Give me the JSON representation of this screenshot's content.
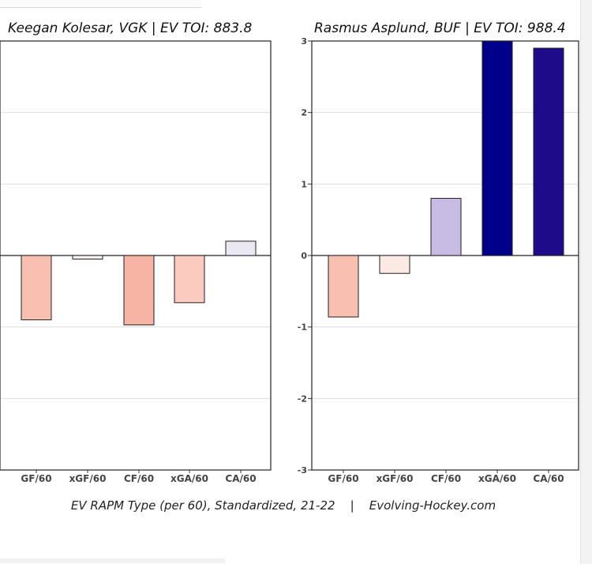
{
  "footer": "EV RAPM Type (per 60), Standardized, 21-22    |    Evolving-Hockey.com",
  "chart_data": [
    {
      "type": "bar",
      "title": "Keegan Kolesar, VGK  |  EV TOI: 883.8",
      "categories": [
        "GF/60",
        "xGF/60",
        "CF/60",
        "xGA/60",
        "CA/60"
      ],
      "values": [
        -0.9,
        -0.05,
        -0.97,
        -0.66,
        0.2
      ],
      "bar_colors": [
        "#f9c0b2",
        "#fdf1ef",
        "#f7b3a3",
        "#fbcbc0",
        "#ebe7f3"
      ],
      "ylim": [
        -3,
        3
      ],
      "yticks": [
        "-3",
        "-2",
        "-1",
        "0",
        "1",
        "2",
        "3"
      ],
      "grid": true,
      "xlabel": "",
      "ylabel": ""
    },
    {
      "type": "bar",
      "title": "Rasmus Asplund, BUF  |  EV TOI: 988.4",
      "categories": [
        "GF/60",
        "xGF/60",
        "CF/60",
        "xGA/60",
        "CA/60"
      ],
      "values": [
        -0.86,
        -0.25,
        0.8,
        3.0,
        2.9
      ],
      "bar_colors": [
        "#f9c0b0",
        "#fde9e3",
        "#c8bbe3",
        "#00008b",
        "#1d0b8a"
      ],
      "ylim": [
        -3,
        3
      ],
      "yticks": [
        "-3",
        "-2",
        "-1",
        "0",
        "1",
        "2",
        "3"
      ],
      "grid": true,
      "xlabel": "",
      "ylabel": ""
    }
  ]
}
